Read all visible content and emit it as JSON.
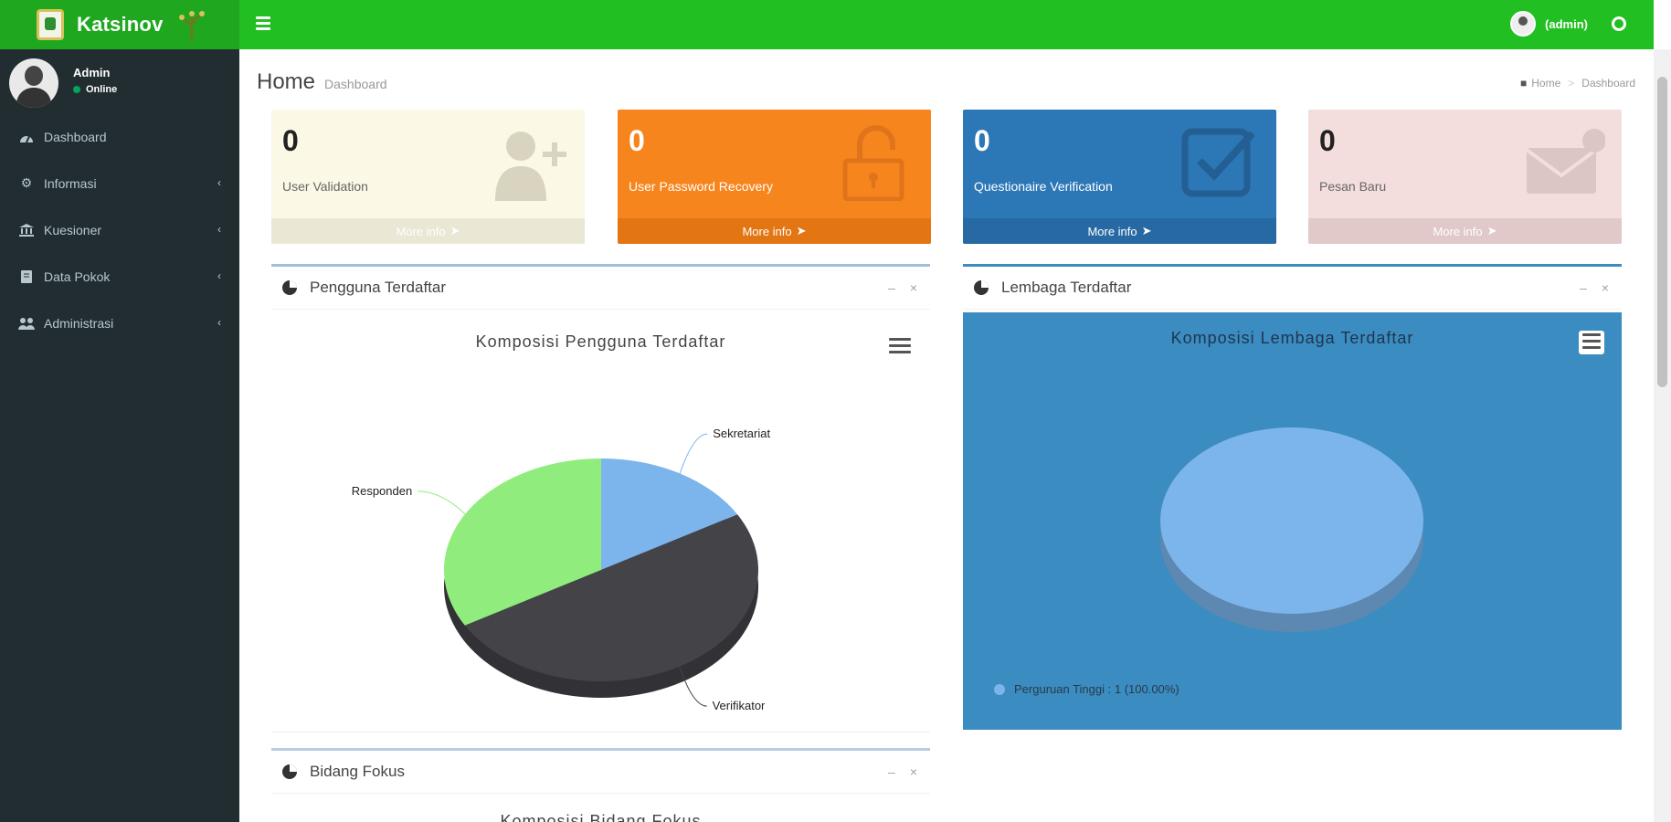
{
  "header": {
    "brand": "Katsinov",
    "user_name": "(admin)"
  },
  "sidebar": {
    "user": {
      "name": "Admin",
      "status": "Online"
    },
    "items": [
      {
        "label": "Dashboard",
        "icon": "dashboard-icon"
      },
      {
        "label": "Informasi",
        "icon": "gear-icon"
      },
      {
        "label": "Kuesioner",
        "icon": "bank-icon"
      },
      {
        "label": "Data Pokok",
        "icon": "book-icon"
      },
      {
        "label": "Administrasi",
        "icon": "users-icon"
      }
    ]
  },
  "page": {
    "title": "Home",
    "subtitle": "Dashboard",
    "breadcrumb": [
      "Home",
      "Dashboard"
    ]
  },
  "info_boxes": [
    {
      "value": "0",
      "label": "User Validation",
      "footer": "More info",
      "color": "#fbf8e6"
    },
    {
      "value": "0",
      "label": "User Password Recovery",
      "footer": "More info",
      "color": "#f7851d"
    },
    {
      "value": "0",
      "label": "Questionaire Verification",
      "footer": "More info",
      "color": "#2c77b6"
    },
    {
      "value": "0",
      "label": "Pesan Baru",
      "footer": "More info",
      "color": "#f3dedd"
    }
  ],
  "panels": {
    "pengguna": {
      "title": "Pengguna Terdaftar"
    },
    "lembaga": {
      "title": "Lembaga Terdaftar"
    },
    "bidang": {
      "title": "Bidang Fokus",
      "chart_title": "Komposisi Bidang Fokus"
    }
  },
  "chart_data": [
    {
      "type": "pie",
      "title": "Komposisi Pengguna Terdaftar",
      "slices": [
        {
          "label": "Sekretariat",
          "value": 16.7,
          "color": "#7cb5ec"
        },
        {
          "label": "Verifikator",
          "value": 50.0,
          "color": "#434348"
        },
        {
          "label": "Responden",
          "value": 33.3,
          "color": "#90ed7d"
        }
      ]
    },
    {
      "type": "pie",
      "title": "Komposisi Lembaga Terdaftar",
      "slices": [
        {
          "label": "Perguruan Tinggi",
          "value": 1,
          "percent": "100.00%",
          "color": "#7cb5ec"
        }
      ],
      "legend": "Perguruan Tinggi : 1 (100.00%)",
      "background": "#3b8cc0"
    }
  ]
}
